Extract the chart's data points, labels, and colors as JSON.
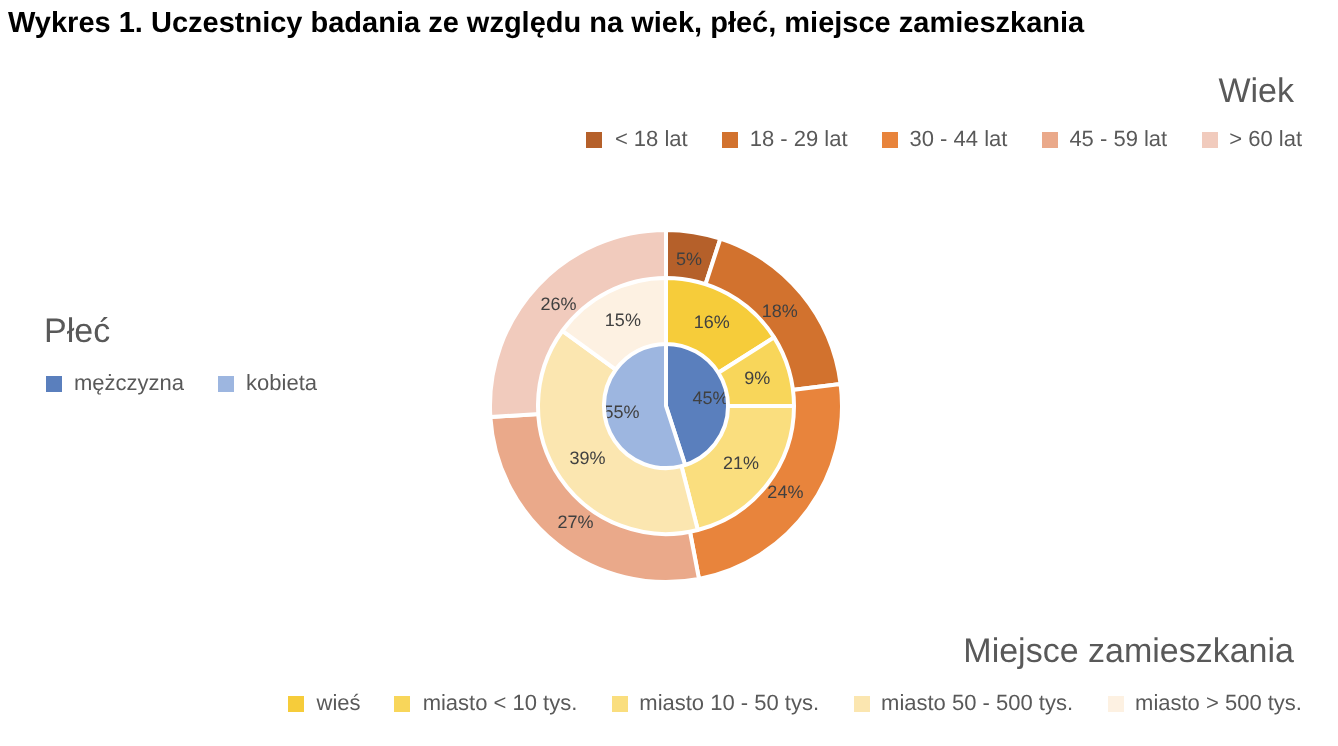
{
  "chart_data": [
    {
      "type": "donut",
      "title": "Wykres 1. Uczestnicy badania ze względu na wiek, płeć, miejsce zamieszkania",
      "legend_title": "Wiek",
      "legend": "top right",
      "categories": [
        "< 18 lat",
        "18 - 29 lat",
        "30 - 44 lat",
        "45 - 59 lat",
        "> 60 lat"
      ],
      "values": [
        5,
        18,
        24,
        27,
        26
      ],
      "value_labels": [
        "5%",
        "18%",
        "24%",
        "27%",
        "26%"
      ],
      "colors": [
        "#b5602a",
        "#d2722e",
        "#e8843c",
        "#eaa98a",
        "#f1cbbd"
      ]
    },
    {
      "type": "pie",
      "legend_title": "Płeć",
      "legend": "left",
      "categories": [
        "mężczyzna",
        "kobieta"
      ],
      "values": [
        45,
        55
      ],
      "value_labels": [
        "45%",
        "55%"
      ],
      "colors": [
        "#5a7fbd",
        "#9db6e0"
      ]
    },
    {
      "type": "donut",
      "legend_title": "Miejsce zamieszkania",
      "legend": "bottom right",
      "categories": [
        "wieś",
        "miasto < 10 tys.",
        "miasto 10 - 50 tys.",
        "miasto 50 - 500 tys.",
        "miasto > 500 tys."
      ],
      "values": [
        16,
        9,
        21,
        39,
        15
      ],
      "value_labels": [
        "16%",
        "9%",
        "21%",
        "39%",
        "15%"
      ],
      "colors": [
        "#f6cc3a",
        "#f8d65a",
        "#fade7e",
        "#fbe6b0",
        "#fdf1e2"
      ]
    }
  ]
}
